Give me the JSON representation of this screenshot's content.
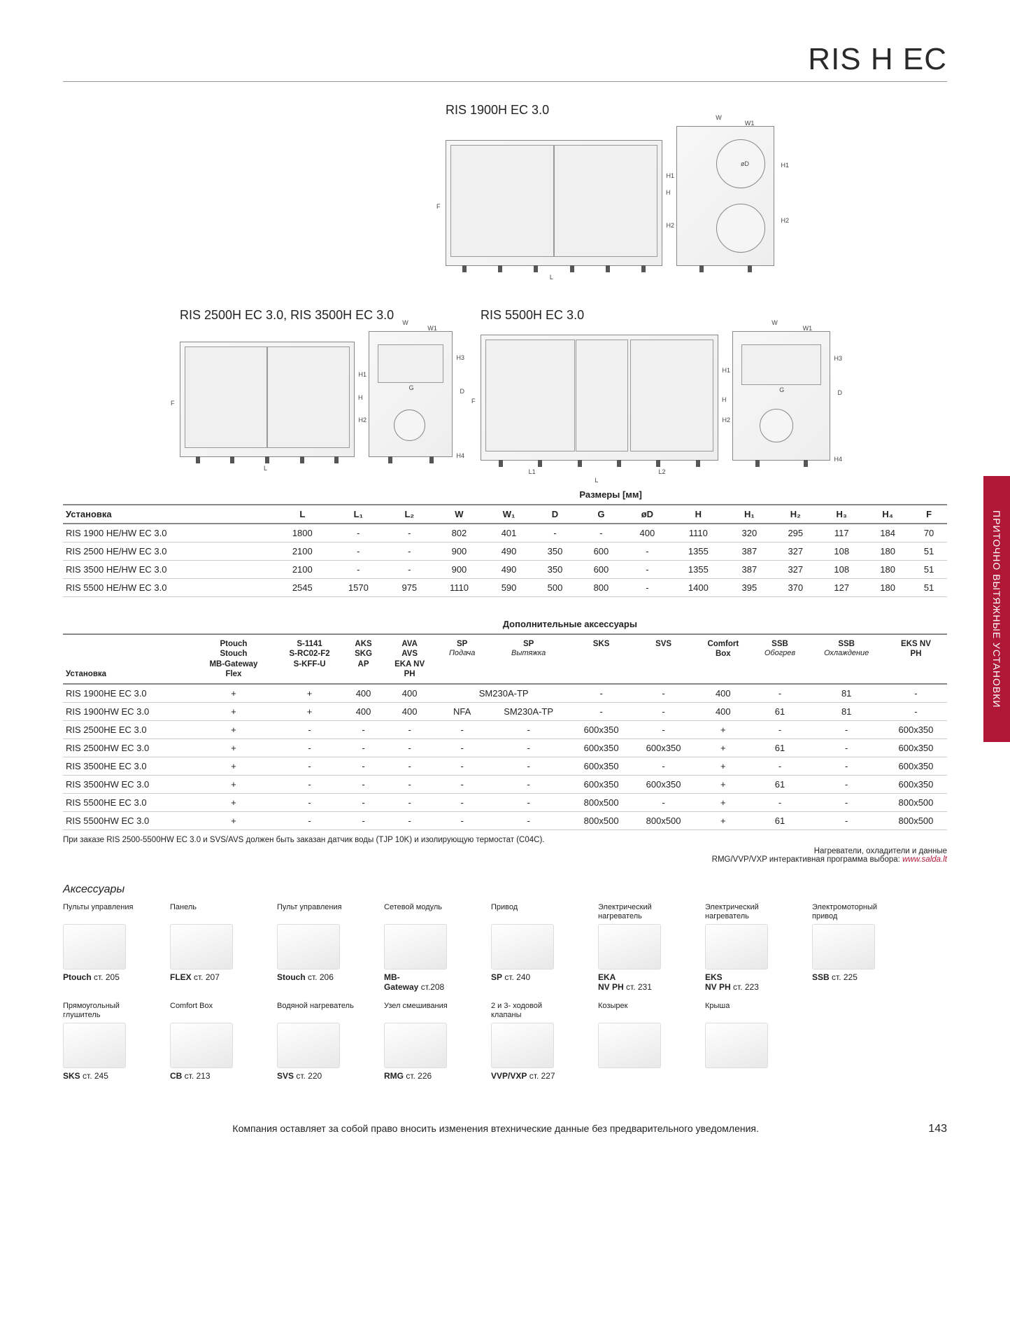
{
  "header": {
    "title": "RIS H EC"
  },
  "side_tab": "ПРИТОЧНО ВЫТЯЖНЫЕ УСТАНОВКИ",
  "diagrams": {
    "d1": {
      "title": "RIS 1900H EC 3.0"
    },
    "d2": {
      "title": "RIS 2500H EC 3.0, RIS 3500H EC 3.0"
    },
    "d3": {
      "title": "RIS 5500H EC 3.0"
    }
  },
  "table1": {
    "title": "Размеры [мм]",
    "row_header": "Установка",
    "columns": [
      "L",
      "L₁",
      "L₂",
      "W",
      "W₁",
      "D",
      "G",
      "øD",
      "H",
      "H₁",
      "H₂",
      "H₃",
      "H₄",
      "F"
    ],
    "rows": [
      {
        "label": "RIS 1900 HE/HW EC 3.0",
        "vals": [
          "1800",
          "-",
          "-",
          "802",
          "401",
          "-",
          "-",
          "400",
          "1110",
          "320",
          "295",
          "117",
          "184",
          "70"
        ]
      },
      {
        "label": "RIS 2500 HE/HW EC 3.0",
        "vals": [
          "2100",
          "-",
          "-",
          "900",
          "490",
          "350",
          "600",
          "-",
          "1355",
          "387",
          "327",
          "108",
          "180",
          "51"
        ]
      },
      {
        "label": "RIS 3500 HE/HW EC 3.0",
        "vals": [
          "2100",
          "-",
          "-",
          "900",
          "490",
          "350",
          "600",
          "-",
          "1355",
          "387",
          "327",
          "108",
          "180",
          "51"
        ]
      },
      {
        "label": "RIS 5500 HE/HW EC 3.0",
        "vals": [
          "2545",
          "1570",
          "975",
          "1110",
          "590",
          "500",
          "800",
          "-",
          "1400",
          "395",
          "370",
          "127",
          "180",
          "51"
        ]
      }
    ]
  },
  "table2": {
    "title": "Дополнительные аксессуары",
    "row_header": "Установка",
    "columns": [
      {
        "h": "Ptouch\nStouch\nMB-Gateway\nFlex",
        "sub": ""
      },
      {
        "h": "S-1141\nS-RC02-F2\nS-KFF-U",
        "sub": ""
      },
      {
        "h": "AKS\nSKG\nAP",
        "sub": ""
      },
      {
        "h": "AVA\nAVS\nEKA NV\nPH",
        "sub": ""
      },
      {
        "h": "SP",
        "sub": "Подача"
      },
      {
        "h": "SP",
        "sub": "Вытяжка"
      },
      {
        "h": "SKS",
        "sub": ""
      },
      {
        "h": "SVS",
        "sub": ""
      },
      {
        "h": "Comfort\nBox",
        "sub": ""
      },
      {
        "h": "SSB",
        "sub": "Обогрев"
      },
      {
        "h": "SSB",
        "sub": "Охлаждение"
      },
      {
        "h": "EKS NV\nPH",
        "sub": ""
      }
    ],
    "rows": [
      {
        "label": "RIS 1900HE EC 3.0",
        "vals": [
          "+",
          "+",
          "400",
          "400",
          {
            "span": 2,
            "v": "SM230A-TP"
          },
          "-",
          "-",
          "400",
          "-",
          "81",
          "-"
        ]
      },
      {
        "label": "RIS 1900HW EC 3.0",
        "vals": [
          "+",
          "+",
          "400",
          "400",
          "NFA",
          "SM230A-TP",
          "-",
          "-",
          "400",
          "61",
          "81",
          "-"
        ]
      },
      {
        "label": "RIS 2500HE EC 3.0",
        "vals": [
          "+",
          "-",
          "-",
          "-",
          "-",
          "-",
          "600x350",
          "-",
          "+",
          "-",
          "-",
          "600x350"
        ]
      },
      {
        "label": "RIS 2500HW EC 3.0",
        "vals": [
          "+",
          "-",
          "-",
          "-",
          "-",
          "-",
          "600x350",
          "600x350",
          "+",
          "61",
          "-",
          "600x350"
        ]
      },
      {
        "label": "RIS 3500HE EC 3.0",
        "vals": [
          "+",
          "-",
          "-",
          "-",
          "-",
          "-",
          "600x350",
          "-",
          "+",
          "-",
          "-",
          "600x350"
        ]
      },
      {
        "label": "RIS 3500HW EC 3.0",
        "vals": [
          "+",
          "-",
          "-",
          "-",
          "-",
          "-",
          "600x350",
          "600x350",
          "+",
          "61",
          "-",
          "600x350"
        ]
      },
      {
        "label": "RIS 5500HE EC 3.0",
        "vals": [
          "+",
          "-",
          "-",
          "-",
          "-",
          "-",
          "800x500",
          "-",
          "+",
          "-",
          "-",
          "800x500"
        ]
      },
      {
        "label": "RIS 5500HW EC 3.0",
        "vals": [
          "+",
          "-",
          "-",
          "-",
          "-",
          "-",
          "800x500",
          "800x500",
          "+",
          "61",
          "-",
          "800x500"
        ]
      }
    ],
    "note": "При заказе RIS 2500-5500HW EC 3.0 и SVS/AVS должен быть заказан датчик воды (TJP 10K) и изолирующую термостат (C04C).",
    "note_right_1": "Нагреватели, охладители и данные",
    "note_right_2": "RMG/VVP/VXP интерактивная программа выбора:",
    "note_link": "www.salda.lt"
  },
  "accessories": {
    "title": "Аксессуары",
    "items": [
      {
        "cat": "Пульты управления",
        "name": "Ptouch",
        "page": "ст. 205"
      },
      {
        "cat": "Панель",
        "name": "FLEX",
        "page": "ст. 207"
      },
      {
        "cat": "Пульт управления",
        "name": "Stouch",
        "page": "ст. 206"
      },
      {
        "cat": "Сетевой модуль",
        "name": "MB-\nGateway",
        "page": "ст.208"
      },
      {
        "cat": "Привод",
        "name": "SP",
        "page": "ст. 240"
      },
      {
        "cat": "Электрический\nнагреватель",
        "name": "EKA\nNV PH",
        "page": "ст. 231"
      },
      {
        "cat": "Электрический\nнагреватель",
        "name": "EKS\nNV PH",
        "page": "ст. 223"
      },
      {
        "cat": "Электромоторный\nпривод",
        "name": "SSB",
        "page": "ст. 225"
      },
      {
        "cat": "Прямоугольный\nглушитель",
        "name": "SKS",
        "page": "ст. 245"
      },
      {
        "cat": "Comfort Box",
        "name": "CB",
        "page": "ст. 213"
      },
      {
        "cat": "Водяной нагреватель",
        "name": "SVS",
        "page": "ст. 220"
      },
      {
        "cat": "Узел смешивания",
        "name": "RMG",
        "page": "ст. 226"
      },
      {
        "cat": "2 и 3- ходовой\nклапаны",
        "name": "VVP/VXP",
        "page": "ст. 227"
      },
      {
        "cat": "Козырек",
        "name": "",
        "page": ""
      },
      {
        "cat": "Крыша",
        "name": "",
        "page": ""
      }
    ]
  },
  "footer": {
    "disclaimer": "Компания оставляет за собой право вносить изменения втехнические данные без предварительного уведомления.",
    "page": "143"
  }
}
